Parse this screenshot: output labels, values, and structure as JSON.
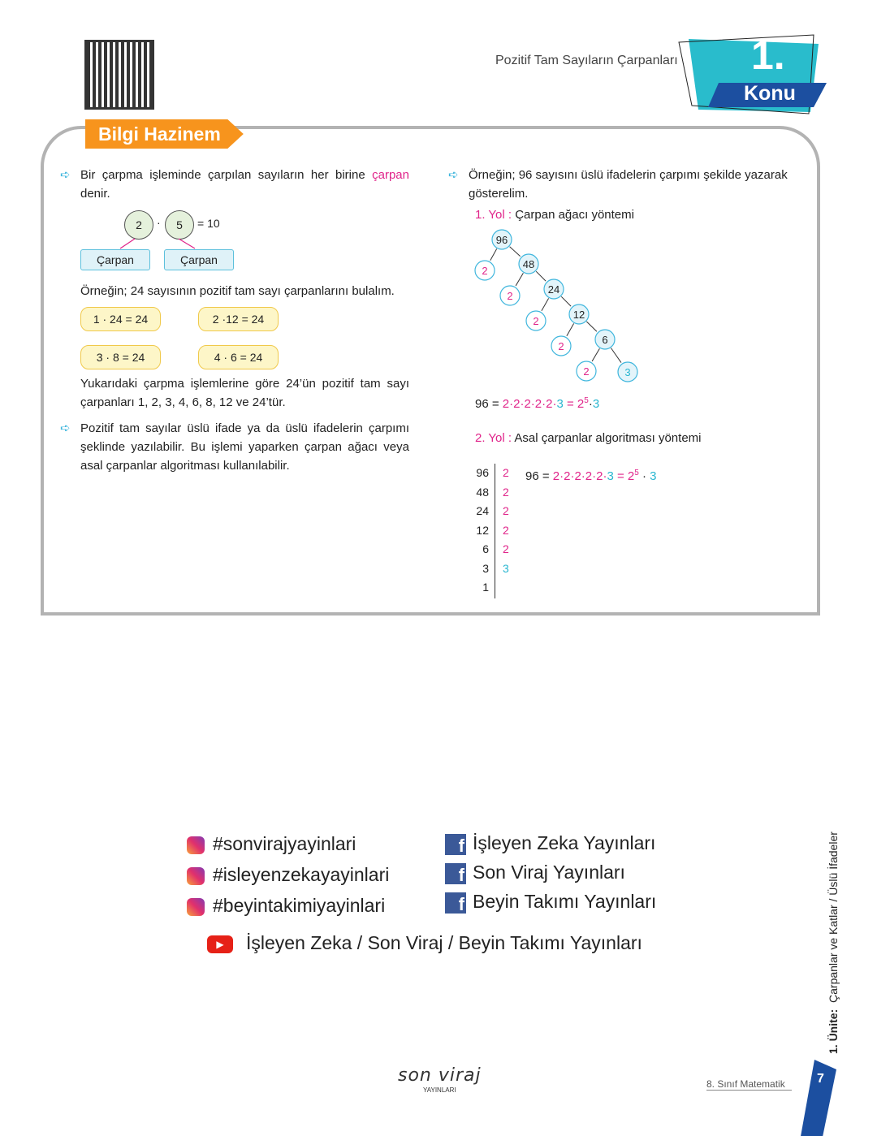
{
  "header": {
    "topic": "Pozitif Tam Sayıların Çarpanları",
    "number": "1.",
    "konu": "Konu"
  },
  "section_title": "Bilgi Hazinem",
  "left": {
    "p1_a": "Bir çarpma işleminde çarpılan sayıların her birine ",
    "p1_b": "çarpan",
    "p1_c": " denir.",
    "eq": {
      "a": "2",
      "dot": "·",
      "b": "5",
      "rest": "= 10",
      "label1": "Çarpan",
      "label2": "Çarpan"
    },
    "p2": "Örneğin; 24 sayısının pozitif tam sayı çarpanlarını bulalım.",
    "products": [
      "1 · 24 = 24",
      "2 ·12 = 24",
      "3 · 8 = 24",
      "4 · 6 = 24"
    ],
    "p3": "Yukarıdaki çarpma işlemlerine göre 24’ün pozitif tam sayı çarpanları 1, 2, 3, 4, 6, 8, 12 ve 24’tür.",
    "p4": "Pozitif tam sayılar üslü ifade ya da üslü ifadelerin çarpımı şeklinde yazılabilir. Bu işlemi yaparken çarpan ağacı veya asal çarpanlar algoritması kullanılabilir."
  },
  "right": {
    "p1": "Örneğin; 96 sayısını üslü ifadelerin çarpımı şekilde yazarak gösterelim.",
    "yol1_label": "1. Yol :",
    "yol1_text": " Çarpan ağacı yöntemi",
    "tree": [
      "96",
      "2",
      "48",
      "2",
      "24",
      "2",
      "12",
      "2",
      "6",
      "2",
      "3"
    ],
    "result1": {
      "lhs": "96 = ",
      "twos": "2·2·2·2·2·",
      "three": "3",
      "eq": " = 2",
      "exp": "5",
      "dot": "·",
      "last": "3"
    },
    "yol2_label": "2. Yol :",
    "yol2_text": " Asal çarpanlar algoritması yöntemi",
    "algo_left": [
      "96",
      "48",
      "24",
      "12",
      "6",
      "3",
      "1"
    ],
    "algo_right": [
      "2",
      "2",
      "2",
      "2",
      "2",
      "3"
    ],
    "result2": {
      "lhs": "96 = ",
      "twos": "2·2·2·2·2·",
      "three": "3",
      "eq": " = 2",
      "exp": "5",
      "dot": " · ",
      "last": "3"
    }
  },
  "social": {
    "instagram": [
      "#sonvirajyayinlari",
      "#isleyenzekayayinlari",
      "#beyintakimiyayinlari"
    ],
    "facebook": [
      "İşleyen Zeka Yayınları",
      "Son Viraj Yayınları",
      "Beyin Takımı Yayınları"
    ],
    "youtube": "İşleyen Zeka / Son Viraj / Beyin Takımı Yayınları"
  },
  "footer": {
    "logo": "son viraj",
    "logo_sub": "YAYINLARI",
    "book": "8. Sınıf Matematik",
    "page": "7",
    "unit_bold": "1. Ünite:",
    "unit_text": "Çarpanlar ve Katlar / Üslü İfadeler"
  },
  "colors": {
    "pink": "#e0248a",
    "cyan": "#29b6d0",
    "orange": "#f7941d",
    "navy": "#1c4fa0"
  }
}
